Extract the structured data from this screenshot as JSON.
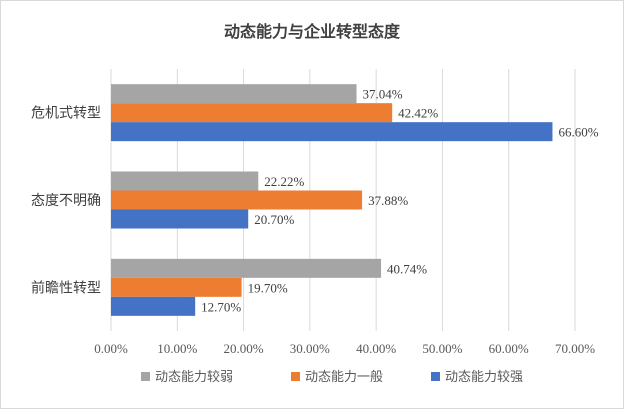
{
  "chart_data": {
    "type": "bar",
    "orientation": "horizontal",
    "title": "动态能力与企业转型态度",
    "categories": [
      "危机式转型",
      "态度不明确",
      "前瞻性转型"
    ],
    "series": [
      {
        "name": "动态能力较弱",
        "color": "#a5a5a5",
        "values": [
          37.04,
          22.22,
          40.74
        ],
        "labels": [
          "37.04%",
          "22.22%",
          "40.74%"
        ]
      },
      {
        "name": "动态能力一般",
        "color": "#ed7d31",
        "values": [
          42.42,
          37.88,
          19.7
        ],
        "labels": [
          "42.42%",
          "37.88%",
          "19.70%"
        ]
      },
      {
        "name": "动态能力较强",
        "color": "#4472c4",
        "values": [
          66.6,
          20.7,
          12.7
        ],
        "labels": [
          "66.60%",
          "20.70%",
          "12.70%"
        ]
      }
    ],
    "xlim": [
      0,
      70
    ],
    "xticks": [
      "0.00%",
      "10.00%",
      "20.00%",
      "30.00%",
      "40.00%",
      "50.00%",
      "60.00%",
      "70.00%"
    ],
    "grid": true,
    "legend_position": "bottom"
  }
}
